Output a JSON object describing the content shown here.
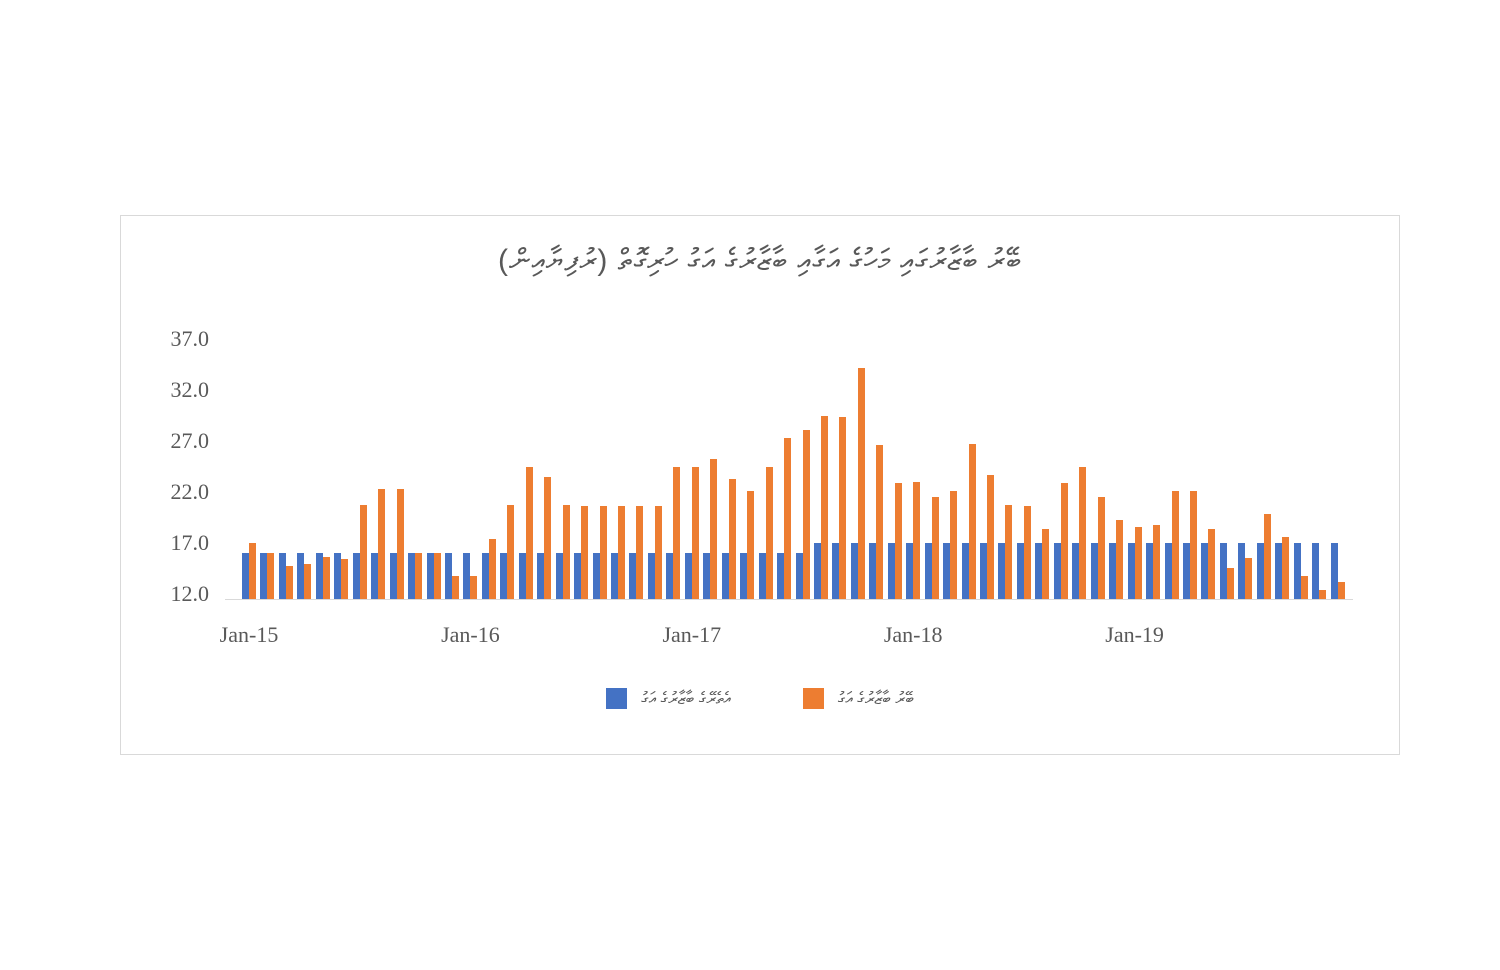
{
  "chart_data": {
    "type": "bar",
    "title": "ބޭރު ބާޒާރުގައި މަހުގެ އަގާއި ބާޒާރުގެ އަގު ހުރިގޮތް (ރުފިޔާއިން)",
    "title_color": "#595959",
    "x_tick_labels": [
      "Jan-15",
      "Jan-16",
      "Jan-17",
      "Jan-18",
      "Jan-19"
    ],
    "y_tick_labels": [
      "12.0",
      "17.0",
      "22.0",
      "27.0",
      "32.0",
      "37.0"
    ],
    "ylim": [
      12,
      37
    ],
    "grid": false,
    "legend_position": "bottom",
    "axis_color": "#d9d9d9",
    "categories": [
      "Jan-15",
      "Feb-15",
      "Mar-15",
      "Apr-15",
      "May-15",
      "Jun-15",
      "Jul-15",
      "Aug-15",
      "Sep-15",
      "Oct-15",
      "Nov-15",
      "Dec-15",
      "Jan-16",
      "Feb-16",
      "Mar-16",
      "Apr-16",
      "May-16",
      "Jun-16",
      "Jul-16",
      "Aug-16",
      "Sep-16",
      "Oct-16",
      "Nov-16",
      "Dec-16",
      "Jan-17",
      "Feb-17",
      "Mar-17",
      "Apr-17",
      "May-17",
      "Jun-17",
      "Jul-17",
      "Aug-17",
      "Sep-17",
      "Oct-17",
      "Nov-17",
      "Dec-17",
      "Jan-18",
      "Feb-18",
      "Mar-18",
      "Apr-18",
      "May-18",
      "Jun-18",
      "Jul-18",
      "Aug-18",
      "Sep-18",
      "Oct-18",
      "Nov-18",
      "Dec-18",
      "Jan-19",
      "Feb-19",
      "Mar-19",
      "Apr-19",
      "May-19",
      "Jun-19",
      "Jul-19",
      "Aug-19",
      "Sep-19",
      "Oct-19",
      "Nov-19",
      "Dec-19"
    ],
    "series": [
      {
        "name": "އެތެރޭގެ ބާޒާރުގެ އަގު",
        "color": "#4472C4",
        "values": [
          16.5,
          16.5,
          16.5,
          16.5,
          16.5,
          16.5,
          16.5,
          16.5,
          16.5,
          16.5,
          16.5,
          16.5,
          16.5,
          16.5,
          16.5,
          16.5,
          16.5,
          16.5,
          16.5,
          16.5,
          16.5,
          16.5,
          16.5,
          16.5,
          16.5,
          16.5,
          16.5,
          16.5,
          16.5,
          16.5,
          16.5,
          17.5,
          17.5,
          17.5,
          17.5,
          17.5,
          17.5,
          17.5,
          17.5,
          17.5,
          17.5,
          17.5,
          17.5,
          17.5,
          17.5,
          17.5,
          17.5,
          17.5,
          17.5,
          17.5,
          17.5,
          17.5,
          17.5,
          17.5,
          17.5,
          17.5,
          17.5,
          17.5,
          17.5,
          17.5
        ]
      },
      {
        "name": "ބޭރު ބާޒާރުގެ އަގު",
        "color": "#ED7D31",
        "values": [
          17.5,
          16.5,
          15.2,
          15.4,
          16.1,
          15.9,
          21.2,
          22.8,
          22.8,
          16.5,
          16.5,
          14.3,
          14.3,
          17.9,
          21.2,
          24.9,
          24.0,
          21.2,
          21.1,
          21.1,
          21.1,
          21.1,
          21.1,
          24.9,
          24.9,
          25.7,
          23.8,
          22.6,
          24.9,
          27.8,
          28.6,
          29.9,
          29.8,
          34.6,
          27.1,
          23.4,
          23.5,
          22.0,
          22.6,
          27.2,
          24.2,
          21.2,
          21.1,
          18.9,
          23.4,
          24.9,
          22.0,
          19.7,
          19.1,
          19.3,
          22.6,
          22.6,
          18.9,
          15.0,
          16.0,
          20.3,
          18.1,
          14.3,
          12.9,
          13.7
        ]
      }
    ]
  }
}
